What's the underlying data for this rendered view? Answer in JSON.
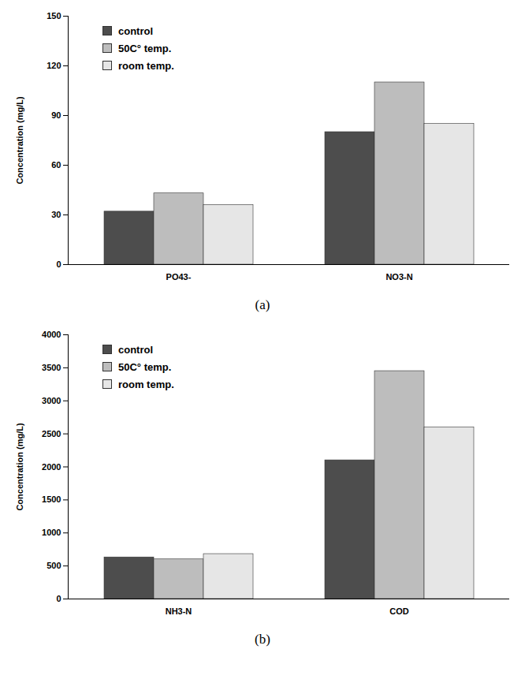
{
  "chart_data": [
    {
      "type": "bar",
      "title": "(a)",
      "ylabel": "Concentration (mg/L)",
      "categories": [
        "PO43-",
        "NO3-N"
      ],
      "series": [
        {
          "name": "control",
          "color": "#4d4d4d",
          "values": [
            32,
            80
          ]
        },
        {
          "name": "50C° temp.",
          "color": "#bdbdbd",
          "values": [
            43,
            110
          ]
        },
        {
          "name": "room temp.",
          "color": "#e6e6e6",
          "values": [
            36,
            85
          ]
        }
      ],
      "ylim": [
        0,
        150
      ],
      "yticks": [
        0,
        30,
        60,
        90,
        120,
        150
      ],
      "legend": "upper left"
    },
    {
      "type": "bar",
      "title": "(b)",
      "ylabel": "Concentration (mg/L)",
      "categories": [
        "NH3-N",
        "COD"
      ],
      "series": [
        {
          "name": "control",
          "color": "#4d4d4d",
          "values": [
            630,
            2100
          ]
        },
        {
          "name": "50C° temp.",
          "color": "#bdbdbd",
          "values": [
            600,
            3450
          ]
        },
        {
          "name": "room temp.",
          "color": "#e6e6e6",
          "values": [
            680,
            2600
          ]
        }
      ],
      "ylim": [
        0,
        4000
      ],
      "yticks": [
        0,
        500,
        1000,
        1500,
        2000,
        2500,
        3000,
        3500,
        4000
      ],
      "legend": "upper left"
    }
  ]
}
